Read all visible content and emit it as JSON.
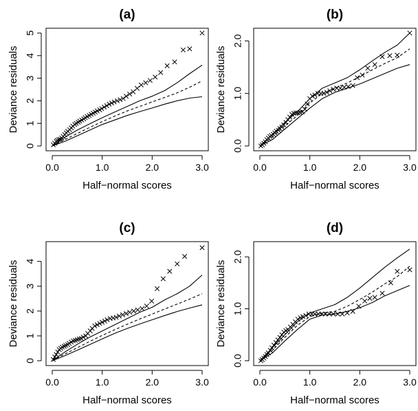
{
  "chart_data": [
    {
      "type": "scatter",
      "title": "(a)",
      "xlabel": "Half−normal scores",
      "ylabel": "Deviance residuals",
      "xlim": [
        0,
        3.0
      ],
      "ylim": [
        0,
        5.0
      ],
      "xticks": [
        0.0,
        1.0,
        2.0,
        3.0
      ],
      "xtick_labels": [
        "0.0",
        "1.0",
        "2.0",
        "3.0"
      ],
      "yticks": [
        0,
        1,
        2,
        3,
        4,
        5
      ],
      "ytick_labels": [
        "0",
        "1",
        "2",
        "3",
        "4",
        "5"
      ],
      "marker": "x",
      "points": {
        "x": [
          0.02,
          0.05,
          0.08,
          0.1,
          0.13,
          0.16,
          0.19,
          0.22,
          0.25,
          0.28,
          0.31,
          0.35,
          0.38,
          0.41,
          0.45,
          0.48,
          0.52,
          0.55,
          0.59,
          0.63,
          0.66,
          0.7,
          0.74,
          0.78,
          0.82,
          0.86,
          0.9,
          0.95,
          0.99,
          1.04,
          1.09,
          1.14,
          1.19,
          1.24,
          1.3,
          1.36,
          1.42,
          1.48,
          1.55,
          1.62,
          1.7,
          1.78,
          1.87,
          1.96,
          2.06,
          2.17,
          2.3,
          2.45,
          2.62,
          2.75,
          3.0
        ],
        "y": [
          0.05,
          0.12,
          0.2,
          0.25,
          0.28,
          0.3,
          0.35,
          0.42,
          0.5,
          0.58,
          0.65,
          0.72,
          0.8,
          0.88,
          0.95,
          1.0,
          1.05,
          1.1,
          1.15,
          1.2,
          1.25,
          1.3,
          1.35,
          1.4,
          1.45,
          1.5,
          1.55,
          1.6,
          1.65,
          1.72,
          1.78,
          1.85,
          1.9,
          1.95,
          2.0,
          2.05,
          2.1,
          2.2,
          2.3,
          2.4,
          2.55,
          2.7,
          2.8,
          2.9,
          3.05,
          3.25,
          3.55,
          3.72,
          4.25,
          4.3,
          5.0
        ]
      },
      "envelope": {
        "x": [
          0.0,
          0.25,
          0.5,
          0.75,
          1.0,
          1.25,
          1.5,
          1.75,
          2.0,
          2.25,
          2.5,
          2.75,
          3.0
        ],
        "lower": [
          0.0,
          0.2,
          0.45,
          0.7,
          0.95,
          1.15,
          1.35,
          1.52,
          1.68,
          1.85,
          2.0,
          2.12,
          2.18
        ],
        "median": [
          0.0,
          0.28,
          0.55,
          0.82,
          1.08,
          1.32,
          1.55,
          1.75,
          1.95,
          2.15,
          2.35,
          2.6,
          2.88
        ],
        "upper": [
          0.0,
          0.38,
          0.7,
          0.98,
          1.25,
          1.5,
          1.75,
          2.0,
          2.2,
          2.45,
          2.8,
          3.2,
          3.58
        ]
      }
    },
    {
      "type": "scatter",
      "title": "(b)",
      "xlabel": "Half−normal scores",
      "ylabel": "Deviance residuals",
      "xlim": [
        0,
        3.0
      ],
      "ylim": [
        0,
        2.15
      ],
      "xticks": [
        0.0,
        1.0,
        2.0,
        3.0
      ],
      "xtick_labels": [
        "0.0",
        "1.0",
        "2.0",
        "3.0"
      ],
      "yticks": [
        0.0,
        1.0,
        2.0
      ],
      "ytick_labels": [
        "0.0",
        "1.0",
        "2.0"
      ],
      "marker": "x",
      "points": {
        "x": [
          0.02,
          0.05,
          0.08,
          0.11,
          0.14,
          0.17,
          0.2,
          0.23,
          0.27,
          0.3,
          0.33,
          0.37,
          0.4,
          0.44,
          0.48,
          0.52,
          0.56,
          0.6,
          0.64,
          0.68,
          0.72,
          0.76,
          0.8,
          0.85,
          0.9,
          0.95,
          1.0,
          1.05,
          1.1,
          1.16,
          1.22,
          1.28,
          1.34,
          1.4,
          1.47,
          1.54,
          1.61,
          1.69,
          1.77,
          1.86,
          1.95,
          2.05,
          2.16,
          2.3,
          2.45,
          2.6,
          2.75,
          3.0
        ],
        "y": [
          0.0,
          0.02,
          0.05,
          0.08,
          0.12,
          0.15,
          0.18,
          0.2,
          0.22,
          0.25,
          0.28,
          0.3,
          0.33,
          0.36,
          0.4,
          0.45,
          0.5,
          0.55,
          0.6,
          0.62,
          0.63,
          0.63,
          0.64,
          0.65,
          0.7,
          0.8,
          0.9,
          0.95,
          0.97,
          1.0,
          1.0,
          1.0,
          1.02,
          1.05,
          1.08,
          1.1,
          1.1,
          1.12,
          1.13,
          1.15,
          1.3,
          1.35,
          1.48,
          1.55,
          1.7,
          1.72,
          1.73,
          2.15
        ]
      },
      "envelope": {
        "x": [
          0.0,
          0.25,
          0.5,
          0.75,
          1.0,
          1.25,
          1.5,
          1.75,
          2.0,
          2.25,
          2.5,
          2.75,
          3.0
        ],
        "lower": [
          0.0,
          0.12,
          0.32,
          0.52,
          0.72,
          0.9,
          1.02,
          1.1,
          1.18,
          1.28,
          1.38,
          1.48,
          1.55
        ],
        "median": [
          0.0,
          0.17,
          0.38,
          0.58,
          0.82,
          1.0,
          1.1,
          1.2,
          1.32,
          1.45,
          1.57,
          1.68,
          1.85
        ],
        "upper": [
          0.0,
          0.22,
          0.45,
          0.65,
          0.9,
          1.1,
          1.2,
          1.3,
          1.45,
          1.62,
          1.78,
          1.92,
          2.15
        ]
      }
    },
    {
      "type": "scatter",
      "title": "(c)",
      "xlabel": "Half−normal scores",
      "ylabel": "Deviance residuals",
      "xlim": [
        0,
        3.0
      ],
      "ylim": [
        0,
        4.6
      ],
      "xticks": [
        0.0,
        1.0,
        2.0,
        3.0
      ],
      "xtick_labels": [
        "0.0",
        "1.0",
        "2.0",
        "3.0"
      ],
      "yticks": [
        0,
        1,
        2,
        3,
        4
      ],
      "ytick_labels": [
        "0",
        "1",
        "2",
        "3",
        "4"
      ],
      "marker": "x",
      "points": {
        "x": [
          0.02,
          0.05,
          0.08,
          0.11,
          0.14,
          0.17,
          0.2,
          0.24,
          0.27,
          0.31,
          0.34,
          0.38,
          0.42,
          0.46,
          0.5,
          0.54,
          0.58,
          0.62,
          0.67,
          0.71,
          0.76,
          0.8,
          0.85,
          0.9,
          0.95,
          1.0,
          1.05,
          1.1,
          1.16,
          1.22,
          1.28,
          1.34,
          1.41,
          1.48,
          1.55,
          1.63,
          1.71,
          1.8,
          1.89,
          1.99,
          2.1,
          2.22,
          2.35,
          2.5,
          2.65,
          3.0
        ],
        "y": [
          0.05,
          0.15,
          0.25,
          0.35,
          0.45,
          0.5,
          0.55,
          0.58,
          0.62,
          0.65,
          0.7,
          0.75,
          0.8,
          0.82,
          0.85,
          0.88,
          0.9,
          0.95,
          1.0,
          1.1,
          1.2,
          1.3,
          1.4,
          1.45,
          1.5,
          1.55,
          1.6,
          1.65,
          1.7,
          1.72,
          1.75,
          1.8,
          1.85,
          1.9,
          1.95,
          2.0,
          2.05,
          2.1,
          2.2,
          2.4,
          2.9,
          3.3,
          3.6,
          3.9,
          4.2,
          4.55
        ]
      },
      "envelope": {
        "x": [
          0.0,
          0.25,
          0.5,
          0.75,
          1.0,
          1.25,
          1.5,
          1.75,
          2.0,
          2.25,
          2.5,
          2.75,
          3.0
        ],
        "lower": [
          0.0,
          0.2,
          0.42,
          0.65,
          0.88,
          1.1,
          1.3,
          1.48,
          1.65,
          1.82,
          1.98,
          2.12,
          2.25
        ],
        "median": [
          0.0,
          0.27,
          0.52,
          0.78,
          1.02,
          1.25,
          1.47,
          1.68,
          1.88,
          2.08,
          2.28,
          2.48,
          2.7
        ],
        "upper": [
          0.0,
          0.35,
          0.66,
          0.95,
          1.2,
          1.45,
          1.7,
          1.95,
          2.15,
          2.45,
          2.7,
          3.0,
          3.45
        ]
      }
    },
    {
      "type": "scatter",
      "title": "(d)",
      "xlabel": "Half−normal scores",
      "ylabel": "Deviance residuals",
      "xlim": [
        0,
        3.0
      ],
      "ylim": [
        0,
        2.2
      ],
      "xticks": [
        0.0,
        1.0,
        2.0,
        3.0
      ],
      "xtick_labels": [
        "0.0",
        "1.0",
        "2.0",
        "3.0"
      ],
      "yticks": [
        0.0,
        1.0,
        2.0
      ],
      "ytick_labels": [
        "0.0",
        "1.0",
        "2.0"
      ],
      "marker": "x",
      "points": {
        "x": [
          0.02,
          0.05,
          0.08,
          0.11,
          0.14,
          0.17,
          0.21,
          0.24,
          0.28,
          0.32,
          0.36,
          0.4,
          0.44,
          0.48,
          0.52,
          0.56,
          0.61,
          0.66,
          0.71,
          0.76,
          0.81,
          0.86,
          0.92,
          0.98,
          1.04,
          1.1,
          1.17,
          1.24,
          1.31,
          1.39,
          1.47,
          1.56,
          1.65,
          1.75,
          1.86,
          1.98,
          2.1,
          2.2,
          2.3,
          2.45,
          2.62,
          2.75,
          3.0
        ],
        "y": [
          0.0,
          0.02,
          0.05,
          0.08,
          0.12,
          0.15,
          0.2,
          0.25,
          0.3,
          0.35,
          0.4,
          0.45,
          0.5,
          0.55,
          0.58,
          0.6,
          0.65,
          0.7,
          0.75,
          0.8,
          0.83,
          0.85,
          0.87,
          0.9,
          0.9,
          0.9,
          0.9,
          0.9,
          0.9,
          0.9,
          0.9,
          0.9,
          0.9,
          0.92,
          0.95,
          1.05,
          1.15,
          1.2,
          1.22,
          1.3,
          1.5,
          1.72,
          1.75
        ]
      },
      "envelope": {
        "x": [
          0.0,
          0.25,
          0.5,
          0.75,
          1.0,
          1.25,
          1.5,
          1.75,
          2.0,
          2.25,
          2.5,
          2.75,
          3.0
        ],
        "lower": [
          0.0,
          0.15,
          0.38,
          0.6,
          0.8,
          0.88,
          0.9,
          0.95,
          1.02,
          1.12,
          1.25,
          1.35,
          1.45
        ],
        "median": [
          0.0,
          0.2,
          0.45,
          0.68,
          0.85,
          0.92,
          0.95,
          1.05,
          1.18,
          1.32,
          1.48,
          1.62,
          1.82
        ],
        "upper": [
          0.0,
          0.25,
          0.5,
          0.75,
          0.92,
          1.0,
          1.08,
          1.22,
          1.4,
          1.6,
          1.8,
          1.98,
          2.15
        ]
      }
    }
  ]
}
